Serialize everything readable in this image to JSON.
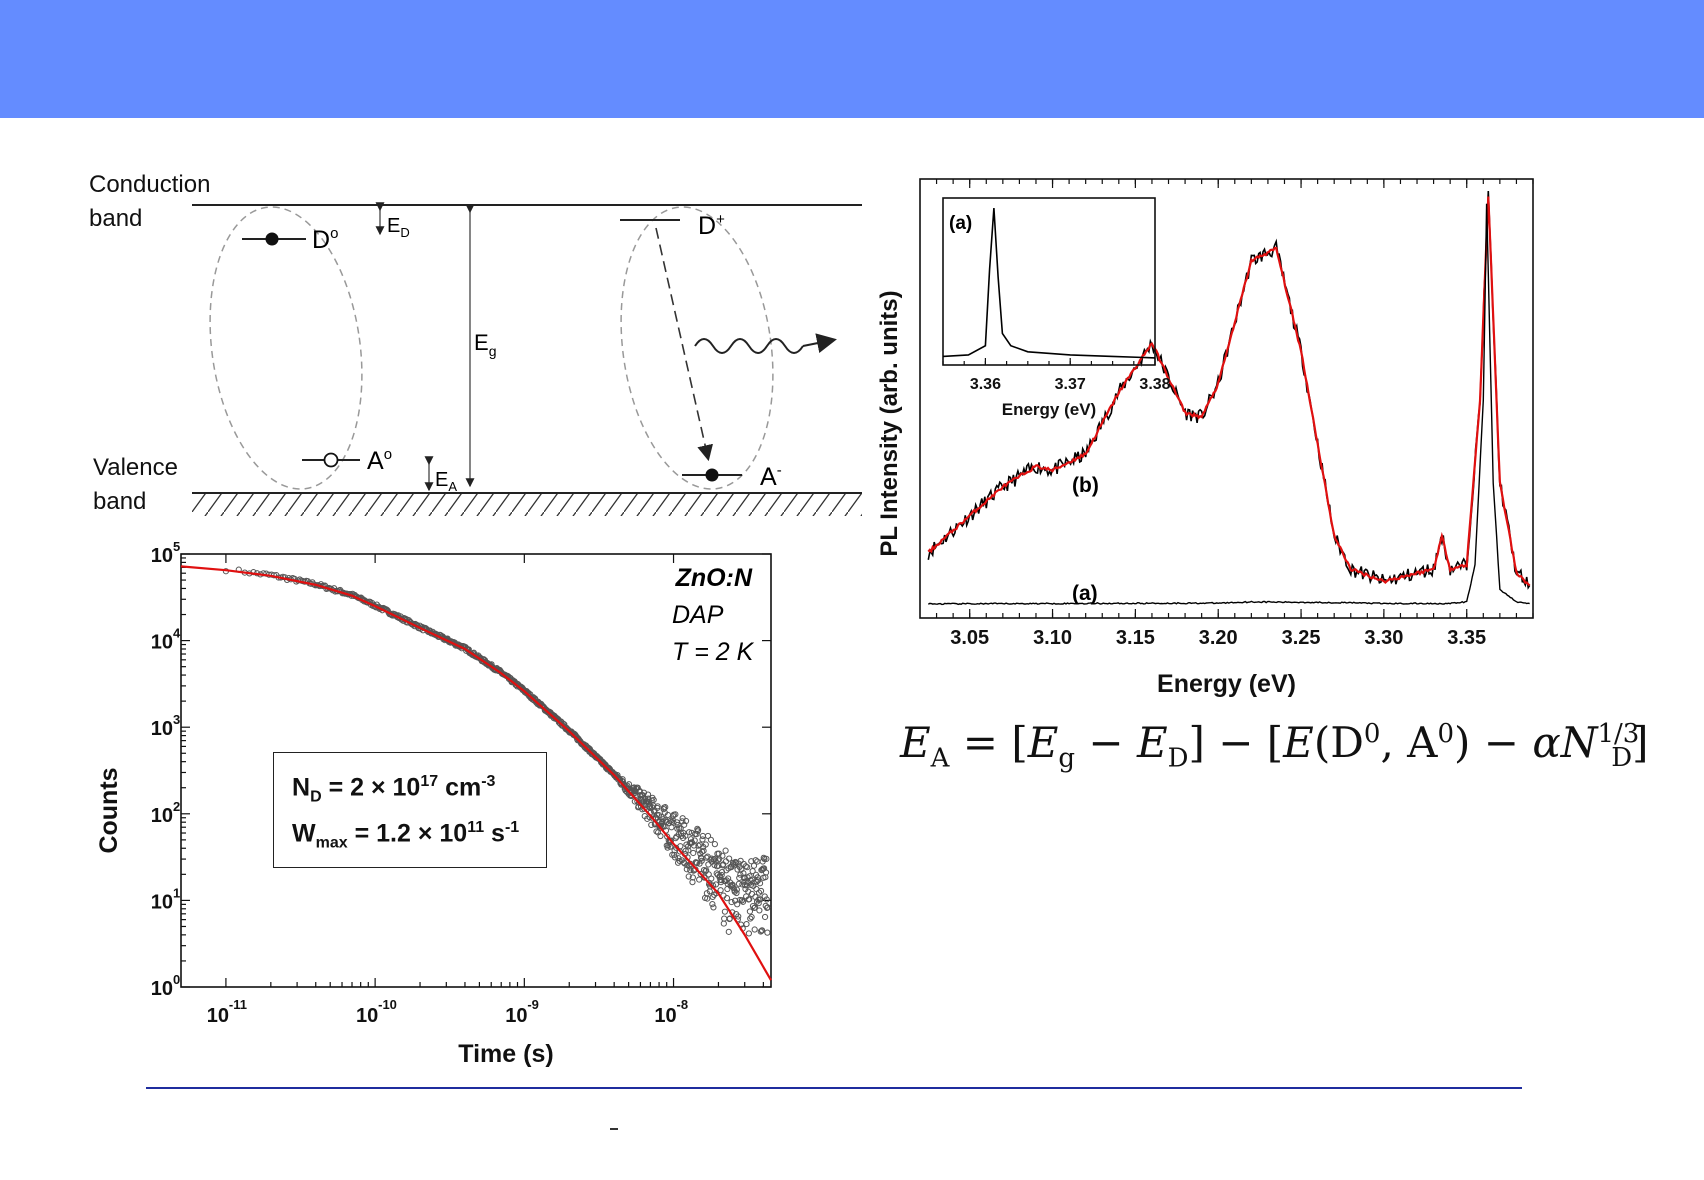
{
  "band_diagram": {
    "conduction_band": "Conduction\nband",
    "valence_band": "Valence\nband",
    "donor_neutral": "D",
    "donor_neutral_sup": "o",
    "acceptor_neutral": "A",
    "acceptor_neutral_sup": "o",
    "donor_ionized": "D",
    "donor_ionized_sup": "+",
    "acceptor_ionized": "A",
    "acceptor_ionized_sup": "-",
    "donor_energy": "E",
    "donor_energy_sub": "D",
    "acceptor_energy": "E",
    "acceptor_energy_sub": "A",
    "gap_energy": "E",
    "gap_energy_sub": "g"
  },
  "decay_chart": {
    "sample": "ZnO:N",
    "process": "DAP",
    "temperature": "T = 2 K",
    "legend_nd": "N",
    "legend_nd_sub": "D",
    "legend_nd_value": " = 2 × 10",
    "legend_nd_exp": "17",
    "legend_nd_unit": " cm",
    "legend_nd_unit_exp": "-3",
    "legend_w": "W",
    "legend_w_sub": "max",
    "legend_w_value": " = 1.2 × 10",
    "legend_w_exp": "11",
    "legend_w_unit": " s",
    "legend_w_unit_exp": "-1"
  },
  "pl_chart": {
    "label_b": "(b)",
    "label_a": "(a)",
    "inset_label": "(a)"
  },
  "equation": {
    "lhs": "E",
    "lhs_sub": "A",
    "eg": "E",
    "eg_sub": "g",
    "ed": "E",
    "ed_sub": "D",
    "func": "E",
    "arg": "(D",
    "arg_sup1": "0",
    "arg_mid": ", A",
    "arg_sup2": "0",
    "alpha": "α",
    "n": "N",
    "n_sub": "D",
    "n_sup": "1/3"
  },
  "chart_data": [
    {
      "type": "scatter",
      "xlabel": "Time (s)",
      "ylabel": "Counts",
      "x_scale": "log",
      "y_scale": "log",
      "xlim": [
        5e-12,
        4.5e-08
      ],
      "ylim": [
        1,
        100000
      ],
      "x_ticks": [
        1e-11,
        1e-10,
        1e-09,
        1e-08
      ],
      "x_tick_labels": [
        "10",
        "10",
        "10",
        "10"
      ],
      "x_tick_exps": [
        "-11",
        "-10",
        "-9",
        "-8"
      ],
      "y_ticks": [
        1,
        10,
        100,
        1000,
        10000,
        100000
      ],
      "y_tick_labels": [
        "10",
        "10",
        "10",
        "10",
        "10",
        "10"
      ],
      "y_tick_exps": [
        "0",
        "1",
        "2",
        "3",
        "4",
        "5"
      ],
      "fit_color": "#e01010",
      "data_color": "#555555",
      "fit": {
        "x": [
          5e-12,
          1e-11,
          2e-11,
          4e-11,
          7e-11,
          1e-10,
          2e-10,
          4e-10,
          7e-10,
          1e-09,
          2e-09,
          4e-09,
          7e-09,
          1e-08,
          2e-08,
          3e-08,
          4.5e-08
        ],
        "y": [
          72000,
          65000,
          56000,
          44000,
          33000,
          25000,
          14000,
          8000,
          4200,
          2600,
          900,
          280,
          95,
          45,
          12,
          4,
          1.2
        ]
      }
    },
    {
      "type": "line",
      "xlabel": "Energy (eV)",
      "ylabel": "PL Intensity (arb. units)",
      "xlim": [
        3.02,
        3.39
      ],
      "ylim": [
        0,
        1
      ],
      "x_ticks": [
        3.05,
        3.1,
        3.15,
        3.2,
        3.25,
        3.3,
        3.35
      ],
      "x_tick_labels": [
        "3.05",
        "3.10",
        "3.15",
        "3.20",
        "3.25",
        "3.30",
        "3.35"
      ],
      "series": [
        {
          "color": "#000000",
          "x": [
            3.025,
            3.05,
            3.07,
            3.09,
            3.1,
            3.12,
            3.14,
            3.16,
            3.18,
            3.19,
            3.2,
            3.22,
            3.235,
            3.25,
            3.27,
            3.28,
            3.3,
            3.32,
            3.33,
            3.335,
            3.34,
            3.35,
            3.358,
            3.363,
            3.37,
            3.38,
            3.388
          ],
          "y": [
            0.13,
            0.22,
            0.29,
            0.34,
            0.33,
            0.37,
            0.52,
            0.64,
            0.47,
            0.46,
            0.54,
            0.84,
            0.87,
            0.62,
            0.17,
            0.09,
            0.06,
            0.08,
            0.09,
            0.17,
            0.09,
            0.1,
            0.5,
            1.0,
            0.3,
            0.08,
            0.05
          ]
        },
        {
          "color": "#e01010",
          "x": [
            3.025,
            3.05,
            3.07,
            3.09,
            3.1,
            3.12,
            3.14,
            3.16,
            3.18,
            3.19,
            3.2,
            3.22,
            3.235,
            3.25,
            3.27,
            3.28,
            3.3,
            3.32,
            3.33,
            3.335,
            3.34,
            3.35,
            3.358,
            3.363,
            3.37,
            3.38,
            3.388
          ],
          "y": [
            0.13,
            0.22,
            0.29,
            0.34,
            0.33,
            0.37,
            0.52,
            0.64,
            0.47,
            0.46,
            0.54,
            0.84,
            0.87,
            0.62,
            0.17,
            0.09,
            0.06,
            0.08,
            0.09,
            0.17,
            0.09,
            0.1,
            0.5,
            1.0,
            0.3,
            0.08,
            0.05
          ]
        },
        {
          "color": "#000000",
          "x": [
            3.025,
            3.1,
            3.2,
            3.22,
            3.28,
            3.3,
            3.34,
            3.35,
            3.355,
            3.36,
            3.362,
            3.366,
            3.37,
            3.38,
            3.388
          ],
          "y": [
            0.005,
            0.006,
            0.007,
            0.01,
            0.008,
            0.006,
            0.006,
            0.01,
            0.1,
            0.5,
            0.98,
            0.3,
            0.04,
            0.01,
            0.006
          ]
        }
      ]
    },
    {
      "type": "line",
      "xlabel": "Energy (eV)",
      "xlim": [
        3.355,
        3.38
      ],
      "ylim": [
        0,
        1
      ],
      "x_ticks": [
        3.36,
        3.37,
        3.38
      ],
      "x_tick_labels": [
        "3.36",
        "3.37",
        "3.38"
      ],
      "series": [
        {
          "color": "#000000",
          "x": [
            3.355,
            3.358,
            3.36,
            3.3605,
            3.361,
            3.3615,
            3.362,
            3.363,
            3.365,
            3.37,
            3.375,
            3.38
          ],
          "y": [
            0.03,
            0.04,
            0.1,
            0.6,
            1.0,
            0.55,
            0.18,
            0.1,
            0.06,
            0.04,
            0.03,
            0.02
          ]
        }
      ]
    }
  ]
}
